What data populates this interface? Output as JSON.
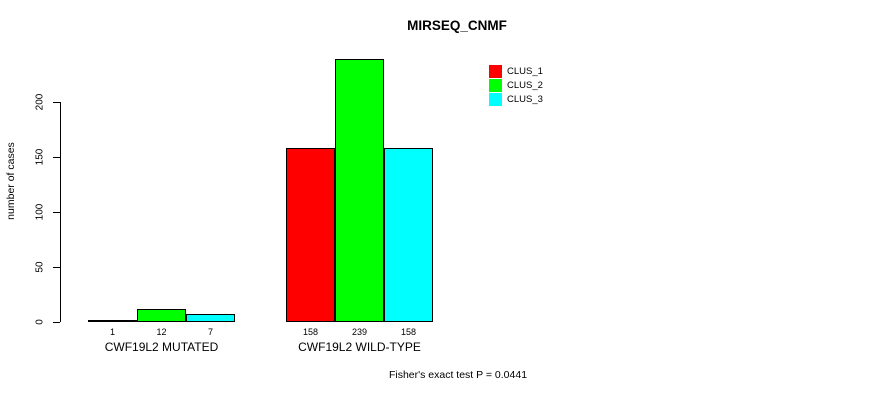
{
  "chart_data": {
    "type": "bar",
    "title": "MIRSEQ_CNMF",
    "xlabel": "",
    "ylabel": "number of cases",
    "categories": [
      "CWF19L2 MUTATED",
      "CWF19L2 WILD-TYPE"
    ],
    "series": [
      {
        "name": "CLUS_1",
        "color": "#FF0000",
        "values": [
          1,
          158
        ]
      },
      {
        "name": "CLUS_2",
        "color": "#00FF00",
        "values": [
          12,
          239
        ]
      },
      {
        "name": "CLUS_3",
        "color": "#00FFFF",
        "values": [
          7,
          158
        ]
      }
    ],
    "bar_value_labels": [
      [
        "1",
        "12",
        "7"
      ],
      [
        "158",
        "239",
        "158"
      ]
    ],
    "yticks": [
      "0",
      "50",
      "100",
      "150",
      "200"
    ],
    "ytick_values": [
      0,
      50,
      100,
      150,
      200
    ],
    "ylim": [
      0,
      245
    ],
    "grid": false,
    "legend_position": "top-right-inside",
    "legend_entries": [
      "CLUS_1",
      "CLUS_2",
      "CLUS_3"
    ],
    "annotation": "Fisher's exact test P = 0.0441"
  }
}
